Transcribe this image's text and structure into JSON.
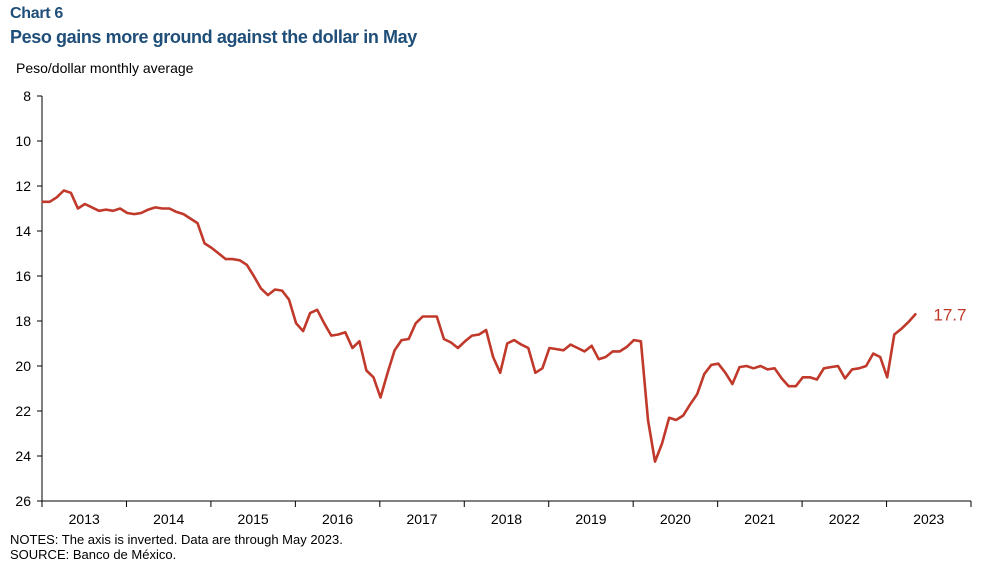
{
  "header": {
    "chart_number": "Chart 6",
    "title": "Peso gains more ground against the dollar in May"
  },
  "notes": {
    "notes_line": "NOTES: The axis is inverted. Data are through May 2023.",
    "source_line": "SOURCE: Banco de México."
  },
  "colors": {
    "series": "#c0392b",
    "title": "#1f4e79"
  },
  "chart_data": {
    "type": "line",
    "ylabel": "Peso/dollar monthly  average",
    "y_inverted": true,
    "ylim": [
      8,
      26
    ],
    "yticks": [
      8,
      10,
      12,
      14,
      16,
      18,
      20,
      22,
      24,
      26
    ],
    "year_labels": [
      "2013",
      "2014",
      "2015",
      "2016",
      "2017",
      "2018",
      "2019",
      "2020",
      "2021",
      "2022",
      "2023"
    ],
    "x_start": "2013-01",
    "end_label": "17.7",
    "grid": false,
    "series": [
      {
        "values": [
          12.7,
          12.7,
          12.5,
          12.2,
          12.3,
          13.0,
          12.8,
          12.95,
          13.1,
          13.05,
          13.1,
          13.0,
          13.2,
          13.25,
          13.2,
          13.05,
          12.95,
          13.0,
          13.0,
          13.15,
          13.25,
          13.45,
          13.65,
          14.55,
          14.75,
          15.0,
          15.25,
          15.25,
          15.3,
          15.5,
          16.0,
          16.55,
          16.85,
          16.6,
          16.65,
          17.05,
          18.1,
          18.45,
          17.65,
          17.5,
          18.1,
          18.65,
          18.6,
          18.5,
          19.2,
          18.9,
          20.2,
          20.5,
          21.4,
          20.3,
          19.3,
          18.85,
          18.8,
          18.1,
          17.8,
          17.8,
          17.8,
          18.8,
          18.95,
          19.2,
          18.9,
          18.65,
          18.6,
          18.4,
          19.6,
          20.3,
          19.0,
          18.85,
          19.05,
          19.2,
          20.3,
          20.1,
          19.2,
          19.25,
          19.3,
          19.05,
          19.2,
          19.35,
          19.1,
          19.7,
          19.6,
          19.35,
          19.35,
          19.15,
          18.85,
          18.9,
          22.4,
          24.25,
          23.45,
          22.3,
          22.4,
          22.2,
          21.7,
          21.25,
          20.35,
          19.95,
          19.9,
          20.3,
          20.8,
          20.05,
          20.0,
          20.1,
          20.0,
          20.15,
          20.1,
          20.55,
          20.9,
          20.9,
          20.5,
          20.5,
          20.6,
          20.1,
          20.05,
          20.0,
          20.55,
          20.15,
          20.1,
          20.0,
          19.45,
          19.6,
          20.5,
          18.6,
          18.35,
          18.05,
          17.7
        ]
      }
    ]
  }
}
